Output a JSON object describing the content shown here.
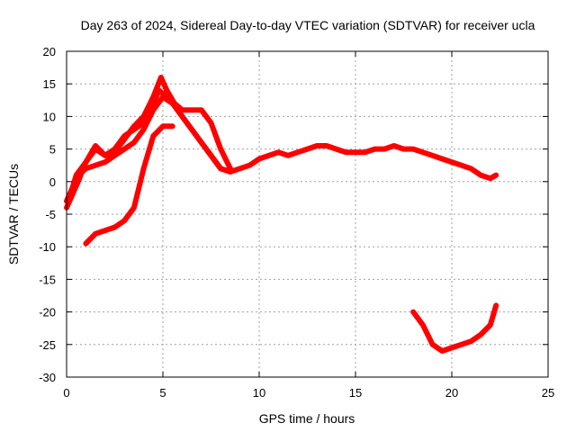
{
  "chart_data": {
    "type": "line",
    "title": "Day 263 of 2024, Sidereal Day-to-day VTEC variation (SDTVAR) for receiver ucla",
    "xlabel": "GPS time / hours",
    "ylabel": "SDTVAR / TECUs",
    "xlim": [
      0,
      25
    ],
    "ylim": [
      -30,
      20
    ],
    "xticks": [
      "0",
      "5",
      "10",
      "15",
      "20",
      "25"
    ],
    "yticks": [
      "20",
      "15",
      "10",
      "5",
      "0",
      "-5",
      "-10",
      "-15",
      "-20",
      "-25",
      "-30"
    ],
    "grid": true,
    "series_color": "#ff0000",
    "series": [
      {
        "name": "trace-1",
        "x": [
          0.0,
          0.3,
          0.6,
          1.0,
          1.5,
          2.0,
          2.5,
          3.0,
          3.5,
          4.0,
          4.5,
          5.0,
          5.5,
          6.0,
          6.5,
          7.0,
          7.5,
          8.0,
          8.5,
          9.0,
          9.5,
          10.0,
          10.5,
          11.0,
          11.5,
          12.0,
          12.5,
          13.0,
          13.5,
          14.0,
          14.5,
          15.0,
          15.5,
          16.0,
          16.5,
          17.0,
          17.5,
          18.0,
          18.5,
          19.0,
          19.5,
          20.0,
          20.5,
          21.0,
          21.5,
          22.0,
          22.3
        ],
        "y": [
          -3,
          -1,
          1,
          2,
          2.5,
          3,
          4,
          5,
          6,
          8,
          11,
          13,
          12,
          10,
          8,
          6,
          4,
          2,
          1.5,
          2,
          2.5,
          3.5,
          4,
          4.5,
          4,
          4.5,
          5,
          5.5,
          5.5,
          5,
          4.5,
          4.5,
          4.5,
          5,
          5,
          5.5,
          5,
          5,
          4.5,
          4,
          3.5,
          3,
          2.5,
          2,
          1,
          0.5,
          1
        ]
      },
      {
        "name": "trace-2",
        "x": [
          0.0,
          0.3,
          0.6,
          1.0,
          1.5,
          2.0,
          2.5,
          3.0,
          3.5,
          4.0,
          4.5,
          4.8,
          5.2,
          5.6,
          6.0,
          6.5,
          7.0,
          7.5,
          8.0,
          8.5
        ],
        "y": [
          -4,
          -2,
          0,
          3,
          5,
          4,
          5,
          7,
          8,
          9,
          12,
          14,
          13,
          12,
          11,
          11,
          11,
          9,
          5,
          2
        ]
      },
      {
        "name": "trace-3",
        "x": [
          0.2,
          0.5,
          1.0,
          1.5,
          2.0,
          2.5,
          3.0,
          3.5,
          4.0,
          4.5,
          4.9,
          5.2,
          5.6,
          6.0,
          6.5,
          7.0,
          7.5,
          8.0,
          8.5
        ],
        "y": [
          -2,
          1,
          3,
          5.5,
          4,
          4.5,
          6.5,
          8.5,
          10,
          13,
          16,
          14,
          12,
          10,
          8,
          6,
          4,
          2,
          1.5
        ]
      },
      {
        "name": "trace-4",
        "x": [
          1.0,
          1.5,
          2.0,
          2.5,
          3.0,
          3.5,
          4.0,
          4.5,
          5.0,
          5.5
        ],
        "y": [
          -9.5,
          -8,
          -7.5,
          -7,
          -6,
          -4,
          2,
          7,
          8.5,
          8.5
        ]
      },
      {
        "name": "trace-5",
        "x": [
          18.0,
          18.5,
          19.0,
          19.5,
          20.0,
          20.5,
          21.0,
          21.5,
          22.0,
          22.3
        ],
        "y": [
          -20,
          -22,
          -25,
          -26,
          -25.5,
          -25,
          -24.5,
          -23.5,
          -22,
          -19
        ]
      }
    ]
  }
}
